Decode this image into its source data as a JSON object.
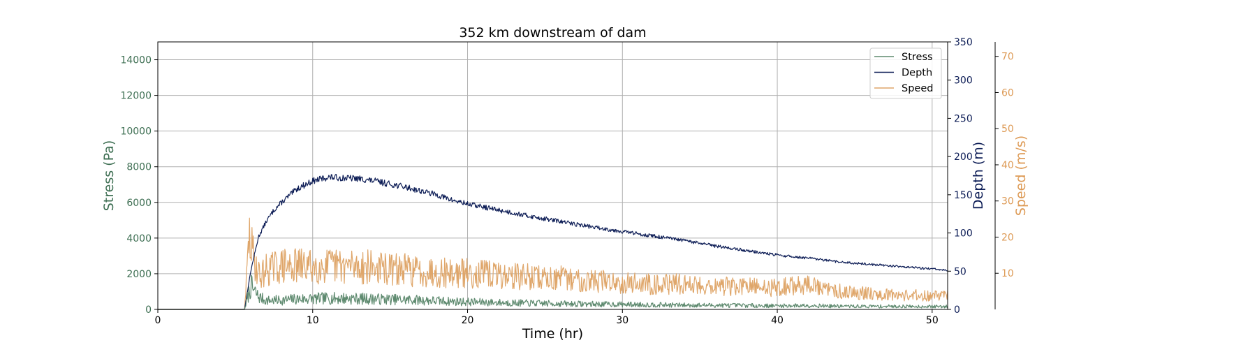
{
  "chart_data": {
    "type": "line",
    "title": "352 km downstream of dam",
    "xlabel": "Time (hr)",
    "xlim": [
      0,
      51
    ],
    "xticks": [
      0,
      10,
      20,
      30,
      40,
      50
    ],
    "grid": true,
    "legend_position": "top-right",
    "axes": [
      {
        "id": "stress",
        "label": "Stress (Pa)",
        "side": "left",
        "color": "#3d6e52",
        "ylim": [
          0,
          15000
        ],
        "ticks": [
          0,
          2000,
          4000,
          6000,
          8000,
          10000,
          12000,
          14000
        ]
      },
      {
        "id": "depth",
        "label": "Depth (m)",
        "side": "right",
        "color": "#0d1d56",
        "ylim": [
          0,
          350
        ],
        "ticks": [
          0,
          50,
          100,
          150,
          200,
          250,
          300,
          350
        ]
      },
      {
        "id": "speed",
        "label": "Speed (m/s)",
        "side": "right-offset",
        "color": "#dd9a55",
        "ylim": [
          0,
          74
        ],
        "ticks": [
          10,
          20,
          30,
          40,
          50,
          60,
          70
        ]
      }
    ],
    "series": [
      {
        "name": "Stress",
        "axis": "stress",
        "color": "#5e8a6f",
        "x": [
          0,
          5.6,
          6.0,
          6.5,
          7,
          8,
          9,
          10,
          11,
          12,
          13,
          14,
          15,
          16,
          17,
          18,
          19,
          20,
          22,
          24,
          26,
          28,
          30,
          32,
          34,
          36,
          38,
          40,
          42,
          44,
          46,
          48,
          50,
          51
        ],
        "y": [
          0,
          0,
          1300,
          700,
          500,
          520,
          580,
          600,
          620,
          620,
          600,
          580,
          560,
          540,
          520,
          480,
          450,
          420,
          380,
          350,
          320,
          300,
          280,
          260,
          240,
          230,
          220,
          200,
          220,
          180,
          170,
          170,
          160,
          160
        ]
      },
      {
        "name": "Depth",
        "axis": "depth",
        "color": "#0d1d56",
        "x": [
          0,
          5.6,
          6.0,
          6.5,
          7,
          7.5,
          8,
          9,
          10,
          11,
          12,
          13,
          14,
          15,
          16,
          17,
          18,
          19,
          20,
          22,
          24,
          26,
          28,
          30,
          32,
          34,
          36,
          38,
          40,
          42,
          44,
          46,
          48,
          50,
          51
        ],
        "y": [
          0,
          0,
          50,
          95,
          115,
          130,
          140,
          158,
          168,
          173,
          172,
          171,
          168,
          164,
          160,
          155,
          150,
          143,
          138,
          130,
          122,
          115,
          108,
          102,
          96,
          90,
          83,
          77,
          71,
          67,
          62,
          59,
          56,
          53,
          51
        ]
      },
      {
        "name": "Speed",
        "axis": "speed",
        "color": "#dfa66a",
        "x": [
          0,
          5.6,
          5.9,
          6.2,
          6.6,
          7,
          8,
          9,
          10,
          11,
          12,
          13,
          14,
          15,
          16,
          17,
          18,
          19,
          20,
          22,
          24,
          26,
          28,
          30,
          32,
          34,
          36,
          38,
          40,
          41,
          42,
          43,
          44,
          46,
          48,
          50,
          51
        ],
        "y": [
          0,
          0,
          20,
          14,
          9,
          11,
          12,
          12,
          12,
          12,
          12,
          12,
          11.5,
          11,
          11,
          10.5,
          10.5,
          10,
          10,
          9.5,
          9,
          8.5,
          8,
          7.5,
          7,
          7,
          6.5,
          6.2,
          6,
          6.5,
          7,
          5.5,
          5,
          4.5,
          4,
          3.8,
          3.8
        ]
      }
    ]
  }
}
